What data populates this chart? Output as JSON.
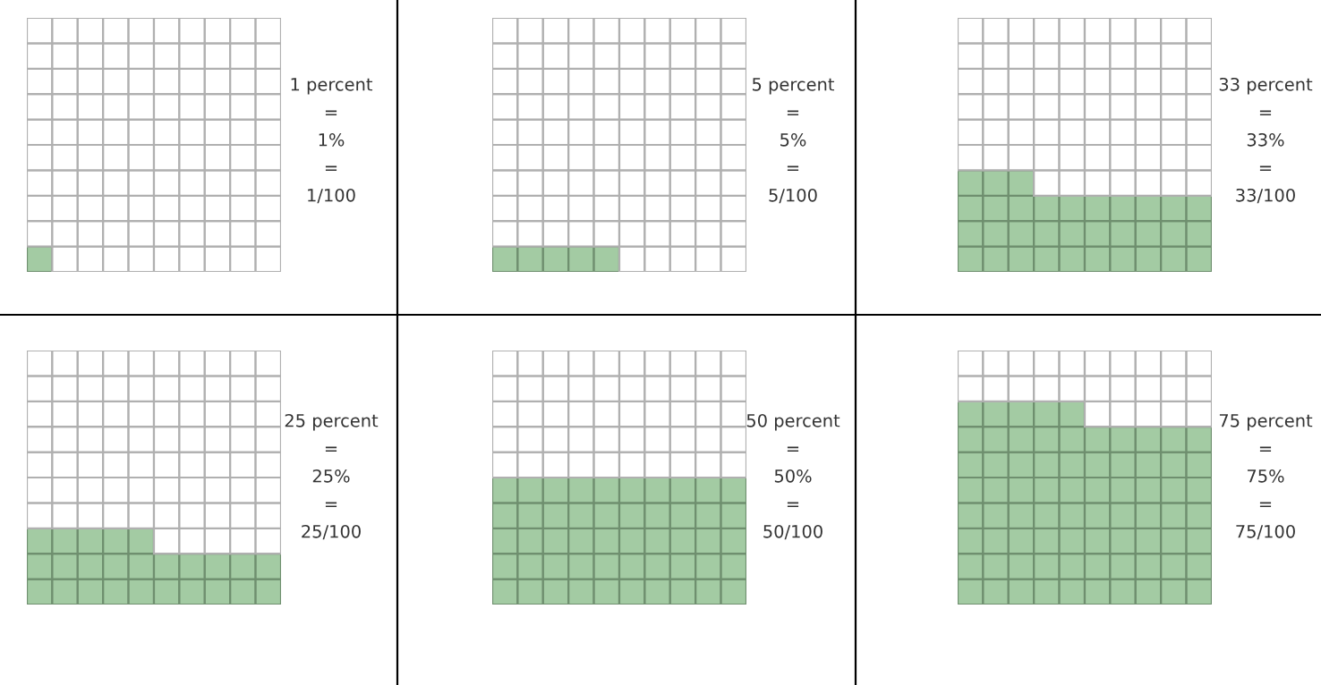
{
  "chart_data": [
    {
      "type": "other",
      "values": [
        1
      ],
      "value_labels": [
        "1%"
      ],
      "color": "#a3cba3",
      "annotations": [
        "1 percent",
        "=",
        "=",
        "1/100"
      ]
    },
    {
      "type": "other",
      "values": [
        5
      ],
      "value_labels": [
        "5%"
      ],
      "color": "#a3cba3",
      "annotations": [
        "5 percent",
        "=",
        "=",
        "5/100"
      ]
    },
    {
      "type": "other",
      "values": [
        33
      ],
      "value_labels": [
        "33%"
      ],
      "color": "#a3cba3",
      "annotations": [
        "33 percent",
        "=",
        "=",
        "33/100"
      ]
    },
    {
      "type": "other",
      "values": [
        25
      ],
      "value_labels": [
        "25%"
      ],
      "color": "#a3cba3",
      "annotations": [
        "25 percent",
        "=",
        "=",
        "25/100"
      ]
    },
    {
      "type": "other",
      "values": [
        50
      ],
      "value_labels": [
        "50%"
      ],
      "color": "#a3cba3",
      "annotations": [
        "50 percent",
        "=",
        "=",
        "50/100"
      ]
    },
    {
      "type": "other",
      "values": [
        75
      ],
      "value_labels": [
        "75%"
      ],
      "color": "#a3cba3",
      "annotations": [
        "75 percent",
        "=",
        "=",
        "75/100"
      ]
    }
  ]
}
